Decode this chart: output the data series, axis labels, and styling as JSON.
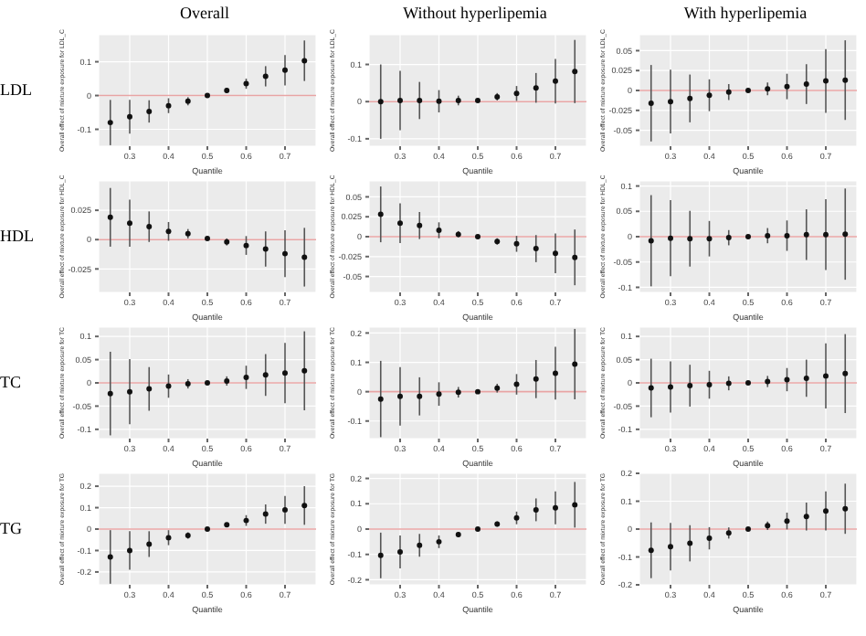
{
  "chart_data": [
    {
      "type": "scatter",
      "title": "Overall",
      "annotations": [
        "LDL"
      ],
      "xlabel": "Quantile",
      "ylabel": "Overall effect of mixture exposure for LDL_C",
      "x": [
        0.25,
        0.3,
        0.35,
        0.4,
        0.45,
        0.5,
        0.55,
        0.6,
        0.65,
        0.7,
        0.75
      ],
      "values": [
        -0.08,
        -0.063,
        -0.047,
        -0.03,
        -0.017,
        0,
        0.015,
        0.035,
        0.057,
        0.075,
        0.103
      ],
      "errors": [
        0.067,
        0.05,
        0.033,
        0.022,
        0.012,
        null,
        0.008,
        0.015,
        0.03,
        0.045,
        0.06
      ],
      "color": "#111111",
      "marker": "circle",
      "xlim": [
        0.22,
        0.78
      ],
      "xticks": [
        0.3,
        0.4,
        0.5,
        0.6,
        0.7
      ],
      "ylim": [
        -0.15,
        0.18
      ],
      "yticks": [
        -0.1,
        0.0,
        0.1
      ],
      "grid": true,
      "ref_lines": [
        {
          "axis": "y",
          "value": 0,
          "color": "#e8a4a4"
        }
      ]
    },
    {
      "type": "scatter",
      "title": "Without hyperlipemia",
      "xlabel": "Quantile",
      "ylabel": "Overall effect of mixture exposure for LDL_C",
      "x": [
        0.25,
        0.3,
        0.35,
        0.4,
        0.45,
        0.5,
        0.55,
        0.6,
        0.65,
        0.7,
        0.75
      ],
      "values": [
        0,
        0.003,
        0.003,
        0.001,
        0.003,
        0.003,
        0.013,
        0.022,
        0.037,
        0.055,
        0.081
      ],
      "errors": [
        0.1,
        0.08,
        0.05,
        0.03,
        0.013,
        null,
        0.01,
        0.02,
        0.04,
        0.06,
        0.085
      ],
      "color": "#111111",
      "marker": "circle",
      "xlim": [
        0.22,
        0.78
      ],
      "xticks": [
        0.3,
        0.4,
        0.5,
        0.6,
        0.7
      ],
      "ylim": [
        -0.12,
        0.18
      ],
      "yticks": [
        -0.1,
        0.0,
        0.1
      ],
      "grid": true,
      "ref_lines": [
        {
          "axis": "y",
          "value": 0,
          "color": "#e8a4a4"
        }
      ]
    },
    {
      "type": "scatter",
      "title": "With hyperlipemia",
      "xlabel": "Quantile",
      "ylabel": "Overall effect of mixture exposure for LDL_C",
      "x": [
        0.25,
        0.3,
        0.35,
        0.4,
        0.45,
        0.5,
        0.55,
        0.6,
        0.65,
        0.7,
        0.75
      ],
      "values": [
        -0.016,
        -0.014,
        -0.01,
        -0.006,
        -0.002,
        0,
        0.002,
        0.005,
        0.008,
        0.012,
        0.013
      ],
      "errors": [
        0.048,
        0.04,
        0.03,
        0.02,
        0.01,
        null,
        0.008,
        0.016,
        0.025,
        0.04,
        0.05
      ],
      "color": "#111111",
      "marker": "circle",
      "xlim": [
        0.22,
        0.78
      ],
      "xticks": [
        0.3,
        0.4,
        0.5,
        0.6,
        0.7
      ],
      "ylim": [
        -0.07,
        0.07
      ],
      "yticks": [
        -0.05,
        -0.025,
        0.0,
        0.025,
        0.05
      ],
      "grid": true,
      "ref_lines": [
        {
          "axis": "y",
          "value": 0,
          "color": "#e8a4a4"
        }
      ]
    },
    {
      "type": "scatter",
      "annotations": [
        "HDL"
      ],
      "xlabel": "Quantile",
      "ylabel": "Overall effect of mixture exposure for HDL_C",
      "x": [
        0.25,
        0.3,
        0.35,
        0.4,
        0.45,
        0.5,
        0.55,
        0.6,
        0.65,
        0.7,
        0.75
      ],
      "values": [
        0.019,
        0.014,
        0.011,
        0.007,
        0.005,
        0.001,
        -0.002,
        -0.005,
        -0.008,
        -0.012,
        -0.015
      ],
      "errors": [
        0.025,
        0.02,
        0.013,
        0.008,
        0.004,
        null,
        0.003,
        0.008,
        0.015,
        0.02,
        0.025
      ],
      "color": "#111111",
      "marker": "circle",
      "xlim": [
        0.22,
        0.78
      ],
      "xticks": [
        0.3,
        0.4,
        0.5,
        0.6,
        0.7
      ],
      "ylim": [
        -0.045,
        0.05
      ],
      "yticks": [
        -0.025,
        0.0,
        0.025
      ],
      "grid": true,
      "ref_lines": [
        {
          "axis": "y",
          "value": 0,
          "color": "#e8a4a4"
        }
      ]
    },
    {
      "type": "scatter",
      "xlabel": "Quantile",
      "ylabel": "Overall effect of mixture exposure for HDL_C",
      "x": [
        0.25,
        0.3,
        0.35,
        0.4,
        0.45,
        0.5,
        0.55,
        0.6,
        0.65,
        0.7,
        0.75
      ],
      "values": [
        0.028,
        0.017,
        0.014,
        0.008,
        0.003,
        0,
        -0.006,
        -0.009,
        -0.015,
        -0.021,
        -0.026
      ],
      "errors": [
        0.035,
        0.025,
        0.017,
        0.01,
        0.004,
        null,
        0.004,
        0.01,
        0.017,
        0.025,
        0.035
      ],
      "color": "#111111",
      "marker": "circle",
      "xlim": [
        0.22,
        0.78
      ],
      "xticks": [
        0.3,
        0.4,
        0.5,
        0.6,
        0.7
      ],
      "ylim": [
        -0.07,
        0.07
      ],
      "yticks": [
        -0.05,
        -0.025,
        0.0,
        0.025,
        0.05
      ],
      "grid": true,
      "ref_lines": [
        {
          "axis": "y",
          "value": 0,
          "color": "#e8a4a4"
        }
      ]
    },
    {
      "type": "scatter",
      "xlabel": "Quantile",
      "ylabel": "Overall effect of mixture exposure for HDL_C",
      "x": [
        0.25,
        0.3,
        0.35,
        0.4,
        0.45,
        0.5,
        0.55,
        0.6,
        0.65,
        0.7,
        0.75
      ],
      "values": [
        -0.008,
        -0.003,
        -0.004,
        -0.004,
        -0.002,
        0,
        0.002,
        0.002,
        0.004,
        0.004,
        0.005
      ],
      "errors": [
        0.09,
        0.075,
        0.055,
        0.035,
        0.015,
        null,
        0.015,
        0.03,
        0.05,
        0.07,
        0.09
      ],
      "color": "#111111",
      "marker": "circle",
      "xlim": [
        0.22,
        0.78
      ],
      "xticks": [
        0.3,
        0.4,
        0.5,
        0.6,
        0.7
      ],
      "ylim": [
        -0.11,
        0.11
      ],
      "yticks": [
        -0.1,
        -0.05,
        0.0,
        0.05,
        0.1
      ],
      "grid": true,
      "ref_lines": [
        {
          "axis": "y",
          "value": 0,
          "color": "#e8a4a4"
        }
      ]
    },
    {
      "type": "scatter",
      "annotations": [
        "TC"
      ],
      "xlabel": "Quantile",
      "ylabel": "Overall effect of mixture exposure for TC",
      "x": [
        0.25,
        0.3,
        0.35,
        0.4,
        0.45,
        0.5,
        0.55,
        0.6,
        0.65,
        0.7,
        0.75
      ],
      "values": [
        -0.023,
        -0.019,
        -0.013,
        -0.007,
        -0.002,
        0,
        0.004,
        0.012,
        0.017,
        0.021,
        0.026
      ],
      "errors": [
        0.09,
        0.07,
        0.047,
        0.025,
        0.01,
        null,
        0.01,
        0.025,
        0.045,
        0.065,
        0.085
      ],
      "color": "#111111",
      "marker": "circle",
      "xlim": [
        0.22,
        0.78
      ],
      "xticks": [
        0.3,
        0.4,
        0.5,
        0.6,
        0.7
      ],
      "ylim": [
        -0.12,
        0.12
      ],
      "yticks": [
        -0.1,
        -0.05,
        0.0,
        0.05,
        0.1
      ],
      "grid": true,
      "ref_lines": [
        {
          "axis": "y",
          "value": 0,
          "color": "#e8a4a4"
        }
      ]
    },
    {
      "type": "scatter",
      "xlabel": "Quantile",
      "ylabel": "Overall effect of mixture exposure for TC",
      "x": [
        0.25,
        0.3,
        0.35,
        0.4,
        0.45,
        0.5,
        0.55,
        0.6,
        0.65,
        0.7,
        0.75
      ],
      "values": [
        -0.025,
        -0.016,
        -0.016,
        -0.008,
        -0.002,
        0,
        0.012,
        0.025,
        0.043,
        0.063,
        0.094
      ],
      "errors": [
        0.13,
        0.1,
        0.065,
        0.04,
        0.018,
        null,
        0.015,
        0.035,
        0.065,
        0.09,
        0.12
      ],
      "color": "#111111",
      "marker": "circle",
      "xlim": [
        0.22,
        0.78
      ],
      "xticks": [
        0.3,
        0.4,
        0.5,
        0.6,
        0.7
      ],
      "ylim": [
        -0.16,
        0.22
      ],
      "yticks": [
        -0.1,
        0.0,
        0.1,
        0.2
      ],
      "grid": true,
      "ref_lines": [
        {
          "axis": "y",
          "value": 0,
          "color": "#e8a4a4"
        }
      ]
    },
    {
      "type": "scatter",
      "xlabel": "Quantile",
      "ylabel": "Overall effect of mixture exposure for TC",
      "x": [
        0.25,
        0.3,
        0.35,
        0.4,
        0.45,
        0.5,
        0.55,
        0.6,
        0.65,
        0.7,
        0.75
      ],
      "values": [
        -0.011,
        -0.009,
        -0.006,
        -0.004,
        -0.001,
        0,
        0.003,
        0.007,
        0.01,
        0.015,
        0.02
      ],
      "errors": [
        0.063,
        0.055,
        0.045,
        0.03,
        0.015,
        null,
        0.012,
        0.025,
        0.04,
        0.07,
        0.085
      ],
      "color": "#111111",
      "marker": "circle",
      "xlim": [
        0.22,
        0.78
      ],
      "xticks": [
        0.3,
        0.4,
        0.5,
        0.6,
        0.7
      ],
      "ylim": [
        -0.12,
        0.12
      ],
      "yticks": [
        -0.1,
        -0.05,
        0.0,
        0.05,
        0.1
      ],
      "grid": true,
      "ref_lines": [
        {
          "axis": "y",
          "value": 0,
          "color": "#e8a4a4"
        }
      ]
    },
    {
      "type": "scatter",
      "annotations": [
        "TG"
      ],
      "xlabel": "Quantile",
      "ylabel": "Overall effect of mixture exposure for TG",
      "x": [
        0.25,
        0.3,
        0.35,
        0.4,
        0.45,
        0.5,
        0.55,
        0.6,
        0.65,
        0.7,
        0.75
      ],
      "values": [
        -0.13,
        -0.1,
        -0.07,
        -0.04,
        -0.03,
        0,
        0.02,
        0.04,
        0.07,
        0.09,
        0.11
      ],
      "errors": [
        0.125,
        0.09,
        0.06,
        0.035,
        0.015,
        null,
        0.01,
        0.025,
        0.045,
        0.065,
        0.09
      ],
      "color": "#111111",
      "marker": "circle",
      "xlim": [
        0.22,
        0.78
      ],
      "xticks": [
        0.3,
        0.4,
        0.5,
        0.6,
        0.7
      ],
      "ylim": [
        -0.26,
        0.26
      ],
      "yticks": [
        -0.2,
        -0.1,
        0.0,
        0.1,
        0.2
      ],
      "grid": true,
      "ref_lines": [
        {
          "axis": "y",
          "value": 0,
          "color": "#e8a4a4"
        }
      ]
    },
    {
      "type": "scatter",
      "xlabel": "Quantile",
      "ylabel": "Overall effect of mixture exposure for TG",
      "x": [
        0.25,
        0.3,
        0.35,
        0.4,
        0.45,
        0.5,
        0.55,
        0.6,
        0.65,
        0.7,
        0.75
      ],
      "values": [
        -0.104,
        -0.09,
        -0.064,
        -0.05,
        -0.022,
        0,
        0.02,
        0.044,
        0.076,
        0.084,
        0.096
      ],
      "errors": [
        0.09,
        0.065,
        0.045,
        0.025,
        0.01,
        null,
        0.01,
        0.025,
        0.045,
        0.065,
        0.09
      ],
      "color": "#111111",
      "marker": "circle",
      "xlim": [
        0.22,
        0.78
      ],
      "xticks": [
        0.3,
        0.4,
        0.5,
        0.6,
        0.7
      ],
      "ylim": [
        -0.22,
        0.22
      ],
      "yticks": [
        -0.2,
        -0.1,
        0.0,
        0.1,
        0.2
      ],
      "grid": true,
      "ref_lines": [
        {
          "axis": "y",
          "value": 0,
          "color": "#e8a4a4"
        }
      ]
    },
    {
      "type": "scatter",
      "xlabel": "Quantile",
      "ylabel": "Overall effect of mixture exposure for TG",
      "x": [
        0.25,
        0.3,
        0.35,
        0.4,
        0.45,
        0.5,
        0.55,
        0.6,
        0.65,
        0.7,
        0.75
      ],
      "values": [
        -0.076,
        -0.063,
        -0.051,
        -0.033,
        -0.014,
        0,
        0.012,
        0.029,
        0.045,
        0.065,
        0.073
      ],
      "errors": [
        0.1,
        0.085,
        0.065,
        0.04,
        0.02,
        null,
        0.015,
        0.03,
        0.05,
        0.07,
        0.09
      ],
      "color": "#111111",
      "marker": "circle",
      "xlim": [
        0.22,
        0.78
      ],
      "xticks": [
        0.3,
        0.4,
        0.5,
        0.6,
        0.7
      ],
      "ylim": [
        -0.2,
        0.2
      ],
      "yticks": [
        -0.2,
        -0.1,
        0.0,
        0.1,
        0.2
      ],
      "grid": true,
      "ref_lines": [
        {
          "axis": "y",
          "value": 0,
          "color": "#e8a4a4"
        }
      ]
    }
  ]
}
